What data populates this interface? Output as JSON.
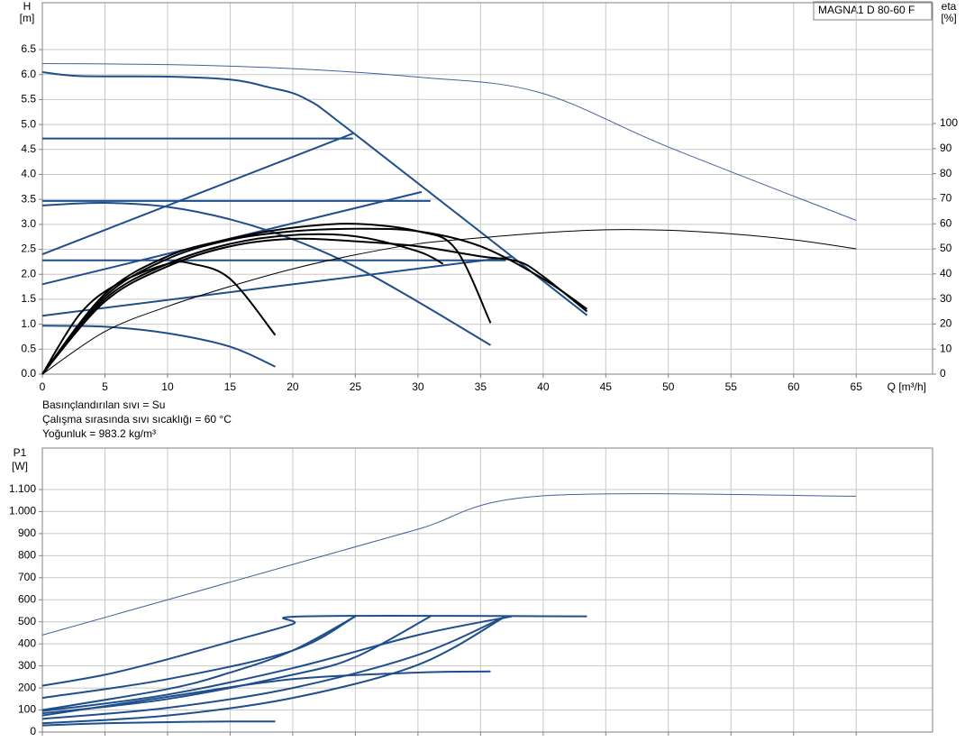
{
  "chart_data": [
    {
      "type": "line",
      "title": "MAGNA1 D 80-60 F",
      "ylabel": "H",
      "ylabel_unit": "[m]",
      "y2label": "eta",
      "y2label_unit": "[%]",
      "xlabel": "Q [m³/h]",
      "annotations": [
        "Basınçlandırılan sıvı = Su",
        "Çalışma sırasında sıvı sıcaklığı = 60 °C",
        "Yoğunluk = 983.2 kg/m³"
      ],
      "xlim": [
        0,
        71.1
      ],
      "xticks": [
        0,
        5,
        10,
        15,
        20,
        25,
        30,
        35,
        40,
        45,
        50,
        55,
        60,
        65
      ],
      "ylim": [
        0,
        7.44
      ],
      "yticks": [
        {
          "value": 0,
          "label": "0.0"
        },
        0.5,
        {
          "value": 1,
          "label": "1.0"
        },
        1.5,
        {
          "value": 2,
          "label": "2.0"
        },
        2.5,
        {
          "value": 3,
          "label": "3.0"
        },
        3.5,
        {
          "value": 4,
          "label": "4.0"
        },
        4.5,
        {
          "value": 5,
          "label": "5.0"
        },
        5.5,
        {
          "value": 6,
          "label": "6.0"
        },
        6.5
      ],
      "y2lim": [
        0,
        148.2
      ],
      "y2ticks": [
        0,
        10,
        20,
        30,
        40,
        50,
        60,
        70,
        80,
        90,
        100
      ],
      "grid": true,
      "series": [
        {
          "color": "#44609a",
          "linewidth": 1,
          "x": [
            0,
            10,
            20,
            30,
            39.6,
            50,
            65
          ],
          "values": [
            6.22,
            6.2,
            6.12,
            5.95,
            5.65,
            4.55,
            3.08
          ]
        },
        {
          "color": "#1f4e8c",
          "linewidth": 2,
          "x": [
            0,
            3,
            10,
            15,
            18,
            21,
            25,
            43.5
          ],
          "values": [
            6.05,
            5.97,
            5.96,
            5.9,
            5.75,
            5.52,
            4.8,
            1.18
          ]
        },
        {
          "color": "#1f4e8c",
          "linewidth": 2,
          "x": [
            0,
            24.8
          ],
          "values": [
            4.72,
            4.72
          ]
        },
        {
          "color": "#1f4e8c",
          "linewidth": 2,
          "x": [
            0,
            31
          ],
          "values": [
            3.47,
            3.47
          ]
        },
        {
          "color": "#1f4e8c",
          "linewidth": 2,
          "x": [
            0,
            37
          ],
          "values": [
            2.28,
            2.28
          ]
        },
        {
          "color": "#1f4e8c",
          "linewidth": 2,
          "x": [
            0,
            24.8
          ],
          "values": [
            2.4,
            4.82
          ]
        },
        {
          "color": "#1f4e8c",
          "linewidth": 2,
          "x": [
            0,
            30.3
          ],
          "values": [
            1.8,
            3.65
          ]
        },
        {
          "color": "#1f4e8c",
          "linewidth": 2,
          "x": [
            0,
            37.5
          ],
          "values": [
            1.17,
            2.35
          ]
        },
        {
          "color": "#1f4e8c",
          "linewidth": 2,
          "x": [
            0,
            5,
            10,
            15,
            20,
            25,
            30,
            35.8
          ],
          "values": [
            3.38,
            3.43,
            3.35,
            3.1,
            2.7,
            2.15,
            1.45,
            0.58
          ]
        },
        {
          "color": "#1f4e8c",
          "linewidth": 2,
          "x": [
            0,
            5,
            10,
            15,
            18.6
          ],
          "values": [
            0.97,
            0.95,
            0.82,
            0.55,
            0.15
          ]
        },
        {
          "color": "#000000",
          "linewidth": 1,
          "axis": "y2",
          "x": [
            0,
            5,
            10,
            15,
            20,
            25,
            30,
            35,
            40,
            45,
            50,
            55,
            60,
            65
          ],
          "values": [
            0,
            17,
            27,
            35,
            42,
            47.6,
            52,
            54.4,
            56.4,
            57.6,
            57.4,
            56,
            53.6,
            50
          ]
        },
        {
          "color": "#000000",
          "linewidth": 2,
          "axis": "y2",
          "x": [
            0,
            5,
            10,
            15,
            20,
            25,
            30,
            35,
            40,
            43.5
          ],
          "values": [
            0,
            31,
            46,
            53.6,
            57,
            58,
            57,
            51,
            38,
            26
          ]
        },
        {
          "color": "#000000",
          "linewidth": 2,
          "axis": "y2",
          "x": [
            0,
            5,
            10,
            15,
            20,
            25,
            30,
            33,
            35.8
          ],
          "values": [
            0,
            32,
            47,
            54,
            58.4,
            60,
            57,
            50,
            20.4
          ]
        },
        {
          "color": "#000000",
          "linewidth": 2,
          "axis": "y2",
          "x": [
            0,
            3,
            6,
            10,
            12,
            15,
            18.6
          ],
          "values": [
            0,
            24,
            36,
            44,
            44,
            38,
            15.6
          ]
        },
        {
          "color": "#000000",
          "linewidth": 2,
          "axis": "y2",
          "x": [
            0,
            5,
            10,
            15,
            20,
            25,
            30,
            35,
            38,
            40,
            43.5
          ],
          "values": [
            0,
            29,
            43,
            51,
            54,
            53,
            51,
            47,
            45,
            39,
            25
          ]
        },
        {
          "color": "#000000",
          "linewidth": 2,
          "axis": "y2",
          "x": [
            0,
            5,
            10,
            15,
            20,
            25,
            30,
            32
          ],
          "values": [
            0,
            30,
            44,
            52,
            55.5,
            55,
            49,
            44
          ]
        }
      ]
    },
    {
      "type": "line",
      "ylabel": "P1",
      "ylabel_unit": "[W]",
      "xlim": [
        0,
        71.1
      ],
      "xticks": [
        0,
        5,
        10,
        15,
        20,
        25,
        30,
        35,
        40,
        45,
        50,
        55,
        60,
        65
      ],
      "xtick_labels": false,
      "ylim": [
        0,
        1288
      ],
      "yticks": [
        0,
        100,
        200,
        300,
        400,
        500,
        600,
        700,
        800,
        900,
        {
          "value": 1000,
          "label": "1.000"
        },
        {
          "value": 1100,
          "label": "1.100"
        }
      ],
      "grid": true,
      "series": [
        {
          "color": "#44609a",
          "linewidth": 1,
          "x": [
            0,
            10,
            20,
            30,
            39.6,
            65
          ],
          "values": [
            440,
            600,
            760,
            920,
            1070,
            1070
          ]
        },
        {
          "color": "#1f4e8c",
          "linewidth": 2,
          "x": [
            0,
            5,
            10,
            15,
            20,
            21,
            43.5
          ],
          "values": [
            210,
            260,
            330,
            410,
            490,
            525,
            525
          ]
        },
        {
          "color": "#1f4e8c",
          "linewidth": 2,
          "x": [
            0,
            10,
            20,
            25
          ],
          "values": [
            155,
            240,
            370,
            525
          ]
        },
        {
          "color": "#1f4e8c",
          "linewidth": 2,
          "x": [
            0,
            10,
            15,
            20,
            25
          ],
          "values": [
            100,
            195,
            270,
            370,
            525
          ]
        },
        {
          "color": "#1f4e8c",
          "linewidth": 2,
          "x": [
            0,
            10,
            20,
            25,
            31
          ],
          "values": [
            85,
            150,
            260,
            340,
            525
          ]
        },
        {
          "color": "#1f4e8c",
          "linewidth": 2,
          "x": [
            0,
            10,
            20,
            30,
            37
          ],
          "values": [
            60,
            110,
            200,
            350,
            525
          ]
        },
        {
          "color": "#1f4e8c",
          "linewidth": 2,
          "x": [
            0,
            10,
            20,
            30,
            37.5
          ],
          "values": [
            95,
            170,
            290,
            440,
            525
          ]
        },
        {
          "color": "#1f4e8c",
          "linewidth": 2,
          "x": [
            0,
            10,
            20,
            30,
            37
          ],
          "values": [
            40,
            75,
            155,
            305,
            525
          ]
        },
        {
          "color": "#1f4e8c",
          "linewidth": 2,
          "x": [
            0,
            10,
            20,
            30,
            35.8
          ],
          "values": [
            75,
            160,
            240,
            270,
            275
          ]
        },
        {
          "color": "#1f4e8c",
          "linewidth": 2,
          "x": [
            0,
            5,
            10,
            15,
            18.6
          ],
          "values": [
            30,
            40,
            45,
            48,
            48
          ]
        }
      ]
    }
  ]
}
